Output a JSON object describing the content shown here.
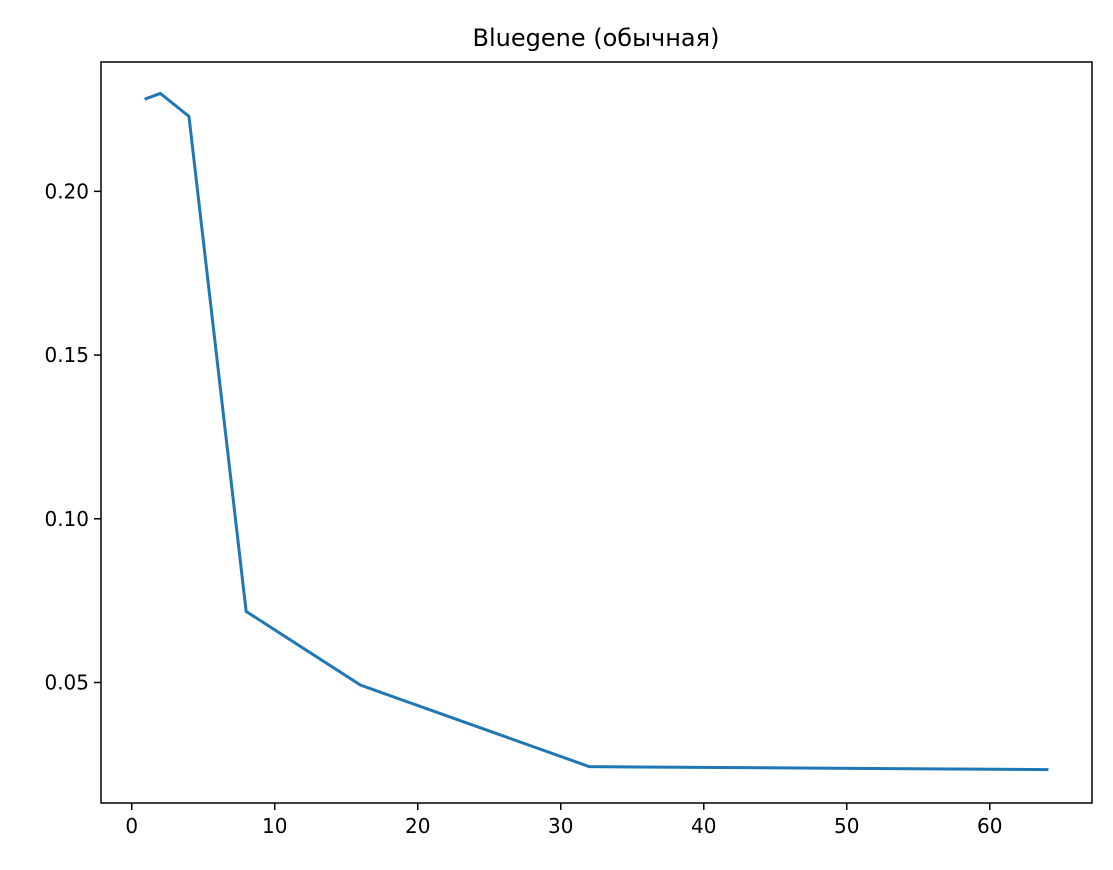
{
  "chart_data": {
    "type": "line",
    "title": "Bluegene (обычная)",
    "xlabel": "",
    "ylabel": "",
    "xlim": [
      -2.15,
      67.15
    ],
    "ylim": [
      0.0132,
      0.2395
    ],
    "xticks": [
      0,
      10,
      20,
      30,
      40,
      50,
      60
    ],
    "yticks": [
      0.05,
      0.1,
      0.15,
      0.2
    ],
    "xtick_labels": [
      "0",
      "10",
      "20",
      "30",
      "40",
      "50",
      "60"
    ],
    "ytick_labels": [
      "0.05",
      "0.10",
      "0.15",
      "0.20"
    ],
    "grid": false,
    "legend": "none",
    "series": [
      {
        "color": "#1f77b4",
        "x": [
          1,
          2,
          4,
          8,
          16,
          32,
          64
        ],
        "y": [
          0.2283,
          0.2299,
          0.2229,
          0.0717,
          0.0492,
          0.0243,
          0.0234
        ]
      }
    ]
  }
}
